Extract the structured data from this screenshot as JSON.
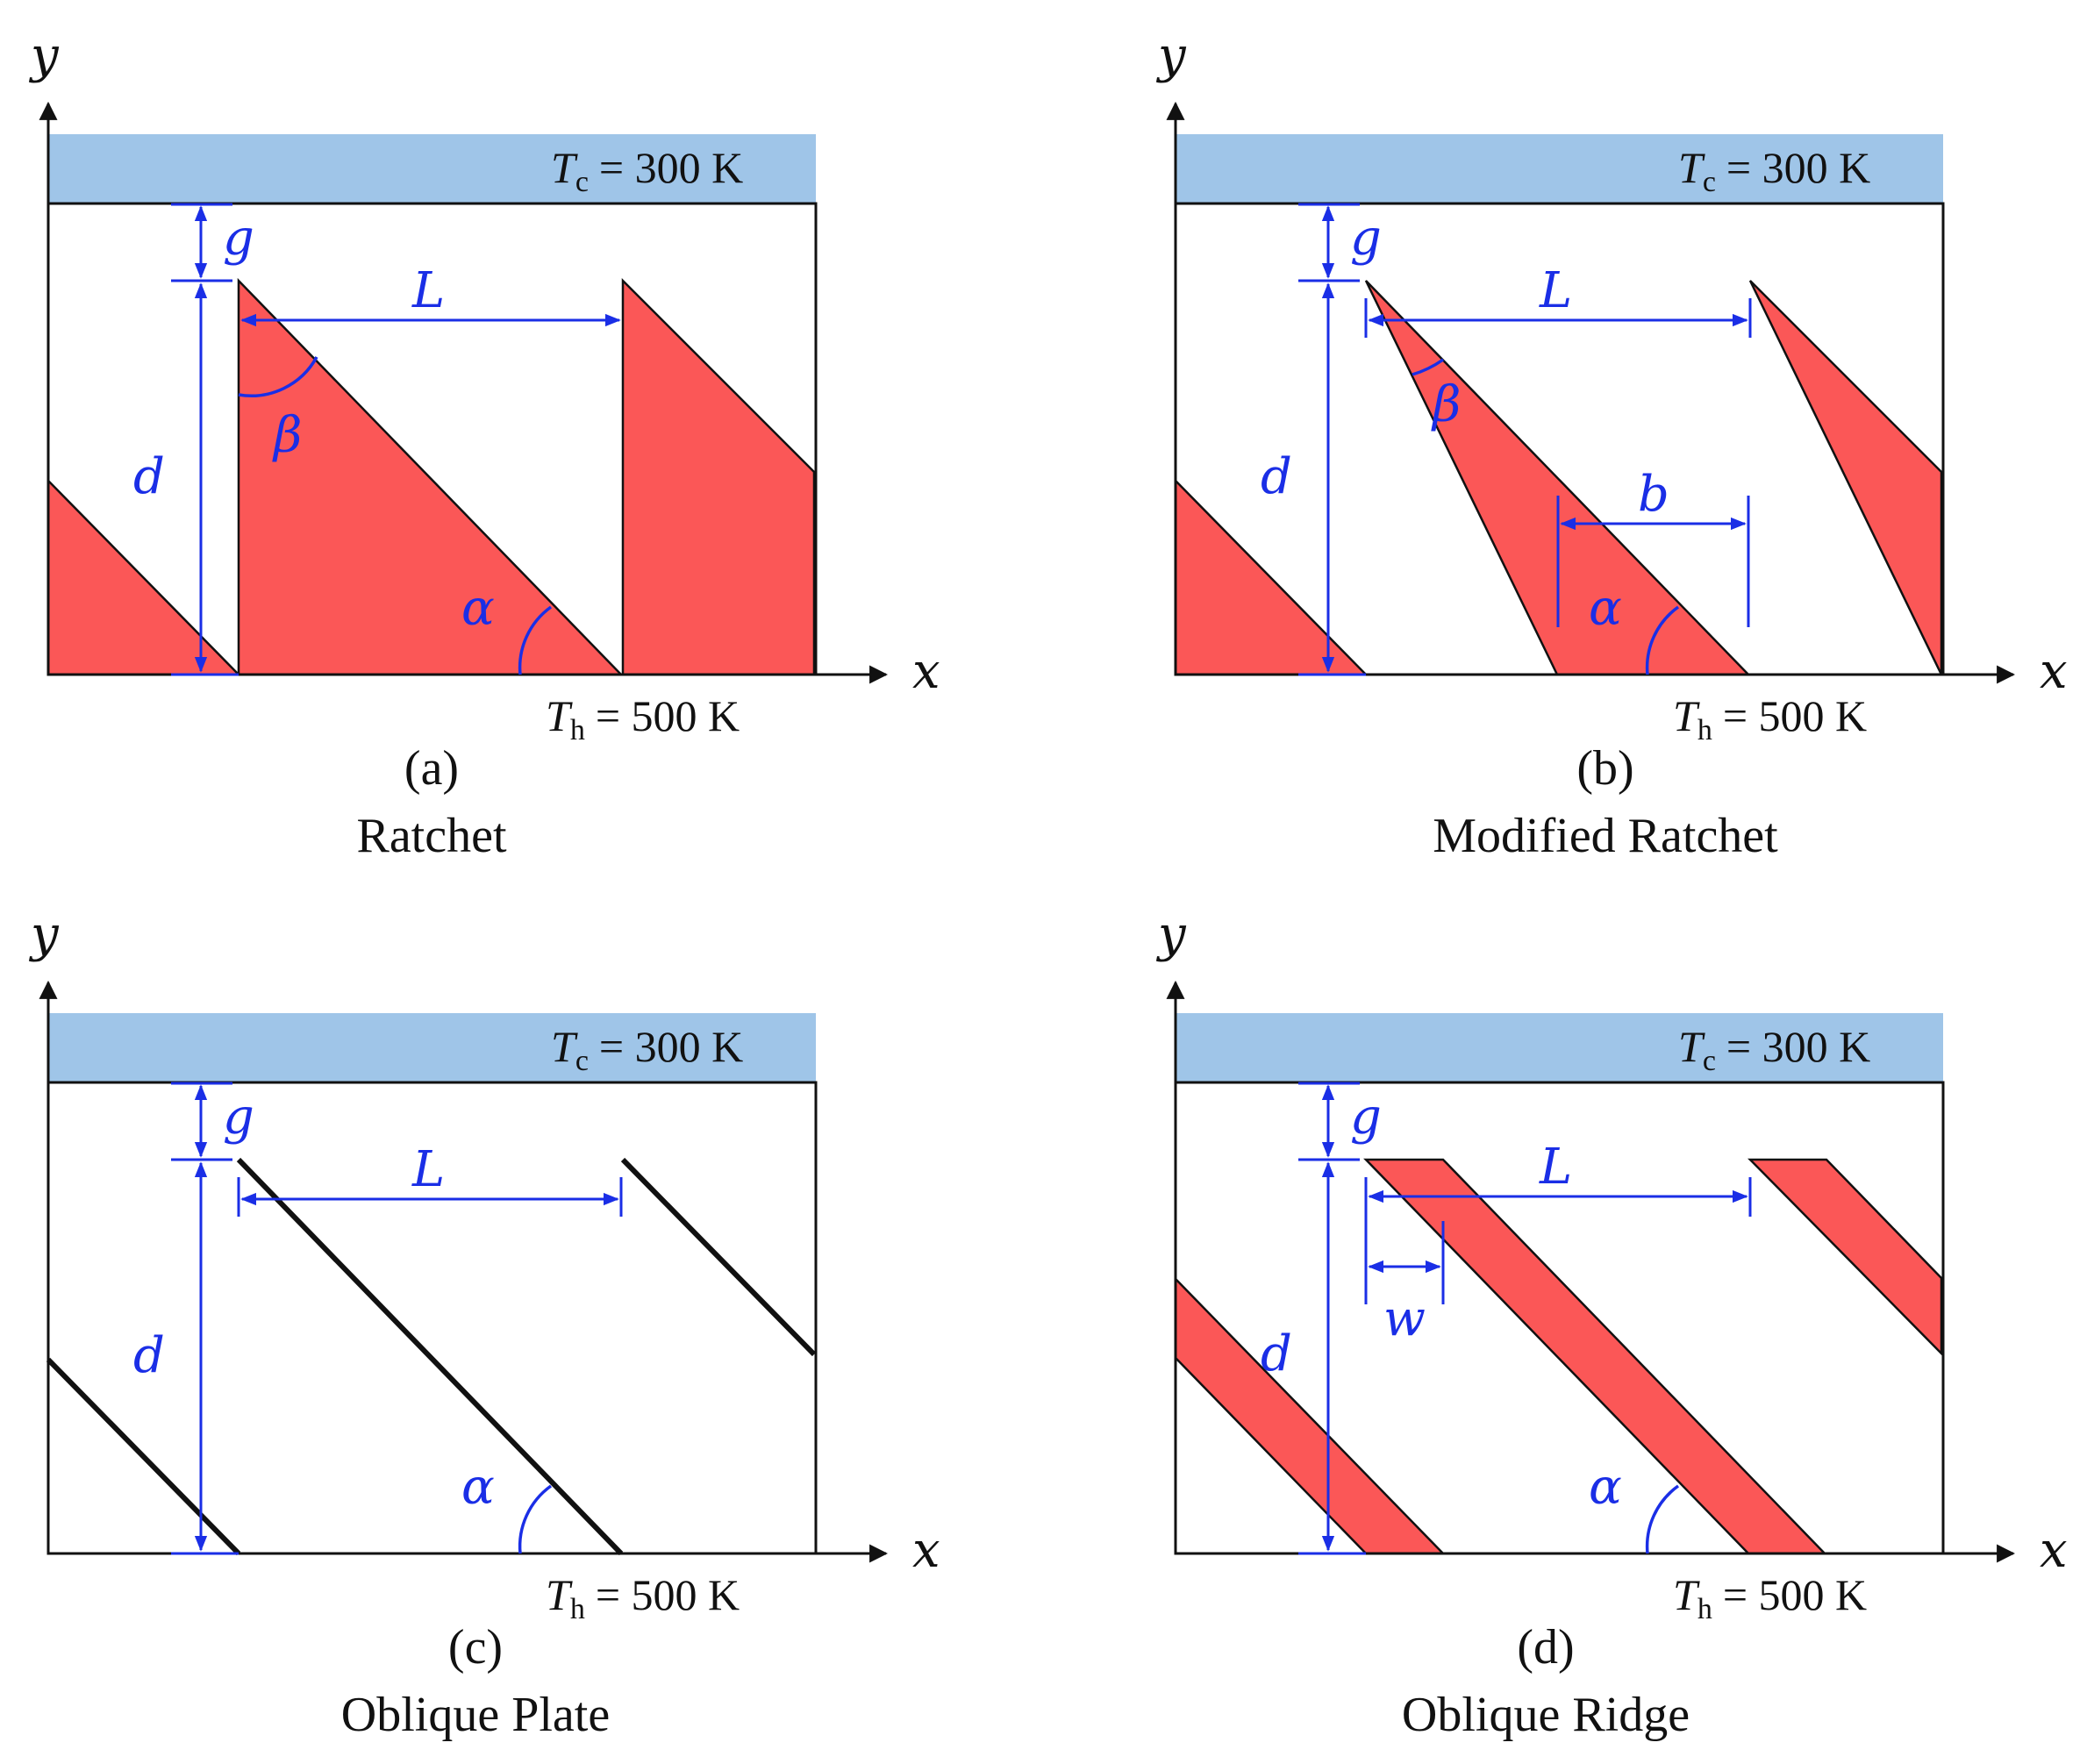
{
  "figure": {
    "colors": {
      "solid": "#fb5757",
      "cold_plate": "#9fc5e8",
      "dimension": "#1a2ee6",
      "outline": "#111111"
    },
    "panels": [
      {
        "id": "a",
        "label": "(a)",
        "title": "Ratchet",
        "cold": {
          "sym": "T",
          "sub": "c",
          "value": "= 300 K"
        },
        "hot": {
          "sym": "T",
          "sub": "h",
          "value": "= 500 K"
        },
        "axes": {
          "x": "x",
          "y": "y"
        },
        "dims": {
          "g": "g",
          "L": "L",
          "d": "d",
          "alpha": "α",
          "beta": "β"
        }
      },
      {
        "id": "b",
        "label": "(b)",
        "title": "Modified Ratchet",
        "cold": {
          "sym": "T",
          "sub": "c",
          "value": "= 300 K"
        },
        "hot": {
          "sym": "T",
          "sub": "h",
          "value": "= 500 K"
        },
        "axes": {
          "x": "x",
          "y": "y"
        },
        "dims": {
          "g": "g",
          "L": "L",
          "d": "d",
          "alpha": "α",
          "beta": "β",
          "b": "b"
        }
      },
      {
        "id": "c",
        "label": "(c)",
        "title": "Oblique Plate",
        "cold": {
          "sym": "T",
          "sub": "c",
          "value": "= 300 K"
        },
        "hot": {
          "sym": "T",
          "sub": "h",
          "value": "= 500 K"
        },
        "axes": {
          "x": "x",
          "y": "y"
        },
        "dims": {
          "g": "g",
          "L": "L",
          "d": "d",
          "alpha": "α"
        }
      },
      {
        "id": "d",
        "label": "(d)",
        "title": "Oblique Ridge",
        "cold": {
          "sym": "T",
          "sub": "c",
          "value": "= 300 K"
        },
        "hot": {
          "sym": "T",
          "sub": "h",
          "value": "= 500 K"
        },
        "axes": {
          "x": "x",
          "y": "y"
        },
        "dims": {
          "g": "g",
          "L": "L",
          "d": "d",
          "alpha": "α",
          "w": "w"
        }
      }
    ]
  }
}
